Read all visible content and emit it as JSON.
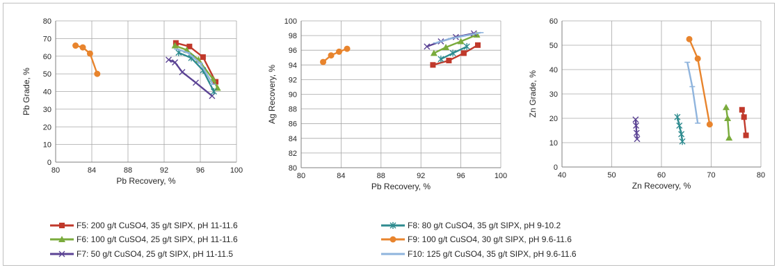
{
  "chart_data": [
    {
      "type": "line",
      "xlabel": "Pb Recovery, %",
      "ylabel": "Pb Grade, %",
      "xlim": [
        80,
        100
      ],
      "ylim": [
        0,
        80
      ],
      "xticks": [
        80,
        84,
        88,
        92,
        96,
        100
      ],
      "yticks": [
        0,
        10,
        20,
        30,
        40,
        50,
        60,
        70,
        80
      ],
      "grid": true,
      "series": [
        {
          "key": "F5",
          "x": [
            93.3,
            94.8,
            96.3,
            97.7
          ],
          "y": [
            67.5,
            65.5,
            59.5,
            45.5
          ]
        },
        {
          "key": "F6",
          "x": [
            93.2,
            94.5,
            95.8,
            97.4,
            97.9
          ],
          "y": [
            66,
            63.5,
            58,
            47,
            42
          ]
        },
        {
          "key": "F7",
          "x": [
            92.5,
            93.2,
            94.0,
            95.5,
            97.3
          ],
          "y": [
            58,
            56.5,
            51,
            45,
            37.5
          ]
        },
        {
          "key": "F8",
          "x": [
            93.6,
            95.0,
            96.3,
            97.5
          ],
          "y": [
            62,
            59,
            52,
            40
          ]
        },
        {
          "key": "F9",
          "x": [
            82.2,
            83.0,
            83.8,
            84.6
          ],
          "y": [
            66,
            65,
            61.5,
            50
          ]
        },
        {
          "key": "F10",
          "x": [
            93.4,
            94.6,
            96.0,
            97.4
          ],
          "y": [
            64,
            62,
            56,
            44
          ]
        }
      ]
    },
    {
      "type": "line",
      "xlabel": "Pb Recovery, %",
      "ylabel": "Ag Recovery, %",
      "xlim": [
        80,
        100
      ],
      "ylim": [
        80,
        100
      ],
      "xticks": [
        80,
        84,
        88,
        92,
        96,
        100
      ],
      "yticks": [
        80,
        82,
        84,
        86,
        88,
        90,
        92,
        94,
        96,
        98,
        100
      ],
      "grid": true,
      "series": [
        {
          "key": "F5",
          "x": [
            93.2,
            94.8,
            96.3,
            97.7
          ],
          "y": [
            94,
            94.6,
            95.6,
            96.7
          ]
        },
        {
          "key": "F6",
          "x": [
            93.3,
            94.5,
            96.0,
            97.6
          ],
          "y": [
            95.6,
            96.4,
            97.2,
            98.1
          ]
        },
        {
          "key": "F7",
          "x": [
            92.6,
            94.0,
            95.5,
            97.3
          ],
          "y": [
            96.5,
            97.2,
            97.8,
            98.3
          ]
        },
        {
          "key": "F8",
          "x": [
            94.0,
            95.2,
            96.6
          ],
          "y": [
            94.8,
            95.6,
            96.5
          ]
        },
        {
          "key": "F9",
          "x": [
            82.2,
            83.0,
            83.8,
            84.6
          ],
          "y": [
            94.4,
            95.3,
            95.8,
            96.2
          ]
        },
        {
          "key": "F10",
          "x": [
            93.5,
            95.0,
            96.5,
            98.0
          ],
          "y": [
            97.0,
            97.6,
            98.0,
            98.4
          ]
        }
      ]
    },
    {
      "type": "line",
      "xlabel": "Zn Recovery, %",
      "ylabel": "Zn Grade, %",
      "xlim": [
        40,
        80
      ],
      "ylim": [
        0,
        60
      ],
      "xticks": [
        40,
        50,
        60,
        70,
        80
      ],
      "yticks": [
        0,
        10,
        20,
        30,
        40,
        50,
        60
      ],
      "grid": true,
      "series": [
        {
          "key": "F5",
          "x": [
            76.2,
            76.6,
            77.0
          ],
          "y": [
            23.5,
            20.5,
            13
          ]
        },
        {
          "key": "F6",
          "x": [
            73.0,
            73.3,
            73.6
          ],
          "y": [
            24.5,
            20,
            12
          ]
        },
        {
          "key": "F7",
          "x": [
            54.8,
            54.9,
            55.0,
            55.1
          ],
          "y": [
            19.5,
            17,
            14,
            11.5
          ]
        },
        {
          "key": "F8",
          "x": [
            63.2,
            63.6,
            64.0,
            64.2
          ],
          "y": [
            20.5,
            17,
            13.5,
            10.5
          ]
        },
        {
          "key": "F9",
          "x": [
            65.6,
            67.3,
            69.7
          ],
          "y": [
            52.5,
            44.5,
            17.5
          ]
        },
        {
          "key": "F10",
          "x": [
            65.2,
            66.2,
            67.3
          ],
          "y": [
            43,
            33,
            18
          ]
        }
      ]
    }
  ],
  "legend": [
    {
      "key": "F5",
      "label": "F5: 200 g/t CuSO4, 35 g/t SIPX, pH 11-11.6",
      "color": "#c0392b",
      "marker": "square"
    },
    {
      "key": "F6",
      "label": "F6: 100 g/t CuSO4, 25 g/t SIPX, pH 11-11.6",
      "color": "#7aab3c",
      "marker": "triangle"
    },
    {
      "key": "F7",
      "label": "F7: 50 g/t CuSO4, 25 g/t SIPX, pH 11-11.5",
      "color": "#5b4394",
      "marker": "x"
    },
    {
      "key": "F8",
      "label": "F8: 80 g/t CuSO4, 35 g/t SIPX, pH 9-10.2",
      "color": "#2e8b8f",
      "marker": "star"
    },
    {
      "key": "F9",
      "label": "F9: 100 g/t CuSO4, 30 g/t SIPX, pH 9.6-11.6",
      "color": "#e8842d",
      "marker": "circle"
    },
    {
      "key": "F10",
      "label": "F10: 125 g/t CuSO4, 35 g/t SIPX, pH 9.6-11.6",
      "color": "#8fb4dd",
      "marker": "dash"
    }
  ]
}
